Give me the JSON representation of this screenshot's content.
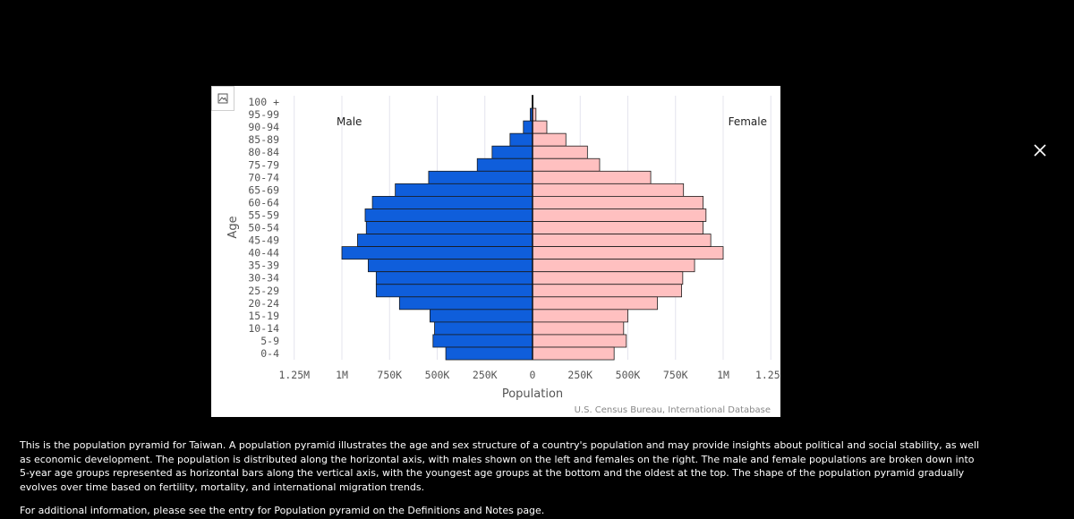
{
  "modal": {
    "description": "This is the population pyramid for Taiwan. A population pyramid illustrates the age and sex structure of a country's population and may provide insights about political and social stability, as well as economic development. The population is distributed along the horizontal axis, with males shown on the left and females on the right. The male and female populations are broken down into 5-year age groups represented as horizontal bars along the vertical axis, with the youngest age groups at the bottom and the oldest at the top. The shape of the population pyramid gradually evolves over time based on fertility, mortality, and international migration trends.",
    "additional_info": "For additional information, please see the entry for Population pyramid on the Definitions and Notes page.",
    "close_icon": "close-icon",
    "image_icon": "image-icon"
  },
  "chart_data": {
    "type": "bar",
    "orientation": "horizontal-pyramid",
    "categories": [
      "100 +",
      "95-99",
      "90-94",
      "85-89",
      "80-84",
      "75-79",
      "70-74",
      "65-69",
      "60-64",
      "55-59",
      "50-54",
      "45-49",
      "40-44",
      "35-39",
      "30-34",
      "25-29",
      "20-24",
      "15-19",
      "10-14",
      "5-9",
      "0-4"
    ],
    "series": [
      {
        "name": "Male",
        "color": "#0f5edb",
        "values": [
          2000,
          12000,
          48000,
          118000,
          212000,
          290000,
          545000,
          720000,
          840000,
          878000,
          872000,
          918000,
          1000000,
          862000,
          820000,
          820000,
          698000,
          538000,
          514000,
          522000,
          455000
        ]
      },
      {
        "name": "Female",
        "color": "#ffc0c0",
        "values": [
          3000,
          18000,
          75000,
          175000,
          288000,
          352000,
          620000,
          792000,
          895000,
          910000,
          895000,
          935000,
          1000000,
          850000,
          788000,
          782000,
          655000,
          500000,
          478000,
          492000,
          428000
        ]
      }
    ],
    "xlabel": "Population",
    "ylabel": "Age",
    "xlim": [
      -1250000,
      1250000
    ],
    "xticks": [
      -1250000,
      -1000000,
      -750000,
      -500000,
      -250000,
      0,
      250000,
      500000,
      750000,
      1000000,
      1250000
    ],
    "xtick_labels": [
      "1.25M",
      "1M",
      "750K",
      "500K",
      "250K",
      "0",
      "250K",
      "500K",
      "750K",
      "1M",
      "1.25M"
    ],
    "source": "U.S. Census Bureau, International Database",
    "grid": "vertical"
  }
}
